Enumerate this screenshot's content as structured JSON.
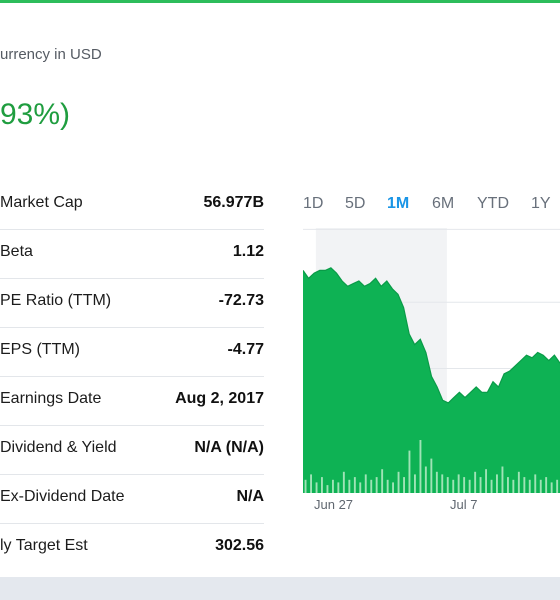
{
  "header": {
    "currency_note": "urrency in USD",
    "change_fragment": "93%)",
    "change_color": "#1f9d3f",
    "accent_color": "#2dbd5b"
  },
  "stats": [
    {
      "label": "Market Cap",
      "value": "56.977B"
    },
    {
      "label": "Beta",
      "value": "1.12"
    },
    {
      "label": "PE Ratio (TTM)",
      "value": "-72.73"
    },
    {
      "label": "EPS (TTM)",
      "value": "-4.77"
    },
    {
      "label": "Earnings Date",
      "value": "Aug 2, 2017"
    },
    {
      "label": "Dividend & Yield",
      "value": "N/A (N/A)"
    },
    {
      "label": "Ex-Dividend Date",
      "value": "N/A"
    },
    {
      "label": "ly Target Est",
      "value": "302.56"
    }
  ],
  "range_tabs": {
    "items": [
      "1D",
      "5D",
      "1M",
      "6M",
      "YTD",
      "1Y"
    ],
    "selected": "1M",
    "active_color": "#1a95e6"
  },
  "chart_data": {
    "type": "area",
    "title": "",
    "xlabel": "",
    "ylabel": "",
    "x_ticks": [
      "Jun 27",
      "Jul 7"
    ],
    "fill_color": "#0eb254",
    "grid": true,
    "series": [
      {
        "values": [
          0.84,
          0.81,
          0.83,
          0.84,
          0.84,
          0.85,
          0.83,
          0.8,
          0.78,
          0.79,
          0.8,
          0.78,
          0.79,
          0.81,
          0.78,
          0.8,
          0.77,
          0.75,
          0.7,
          0.6,
          0.56,
          0.58,
          0.53,
          0.44,
          0.4,
          0.35,
          0.34,
          0.36,
          0.38,
          0.36,
          0.38,
          0.4,
          0.38,
          0.38,
          0.42,
          0.4,
          0.45,
          0.46,
          0.48,
          0.5,
          0.52,
          0.51,
          0.53,
          0.52,
          0.5,
          0.52,
          0.49
        ]
      }
    ],
    "volume": [
      0.05,
      0.07,
      0.04,
      0.06,
      0.03,
      0.05,
      0.04,
      0.08,
      0.05,
      0.06,
      0.04,
      0.07,
      0.05,
      0.06,
      0.09,
      0.05,
      0.04,
      0.08,
      0.06,
      0.16,
      0.07,
      0.2,
      0.1,
      0.13,
      0.08,
      0.07,
      0.06,
      0.05,
      0.07,
      0.06,
      0.05,
      0.08,
      0.06,
      0.09,
      0.05,
      0.07,
      0.1,
      0.06,
      0.05,
      0.08,
      0.06,
      0.05,
      0.07,
      0.05,
      0.06,
      0.04,
      0.05
    ],
    "highlight_range": [
      0.05,
      0.56
    ]
  },
  "footer": {
    "bar_color": "#e4e8ee"
  }
}
